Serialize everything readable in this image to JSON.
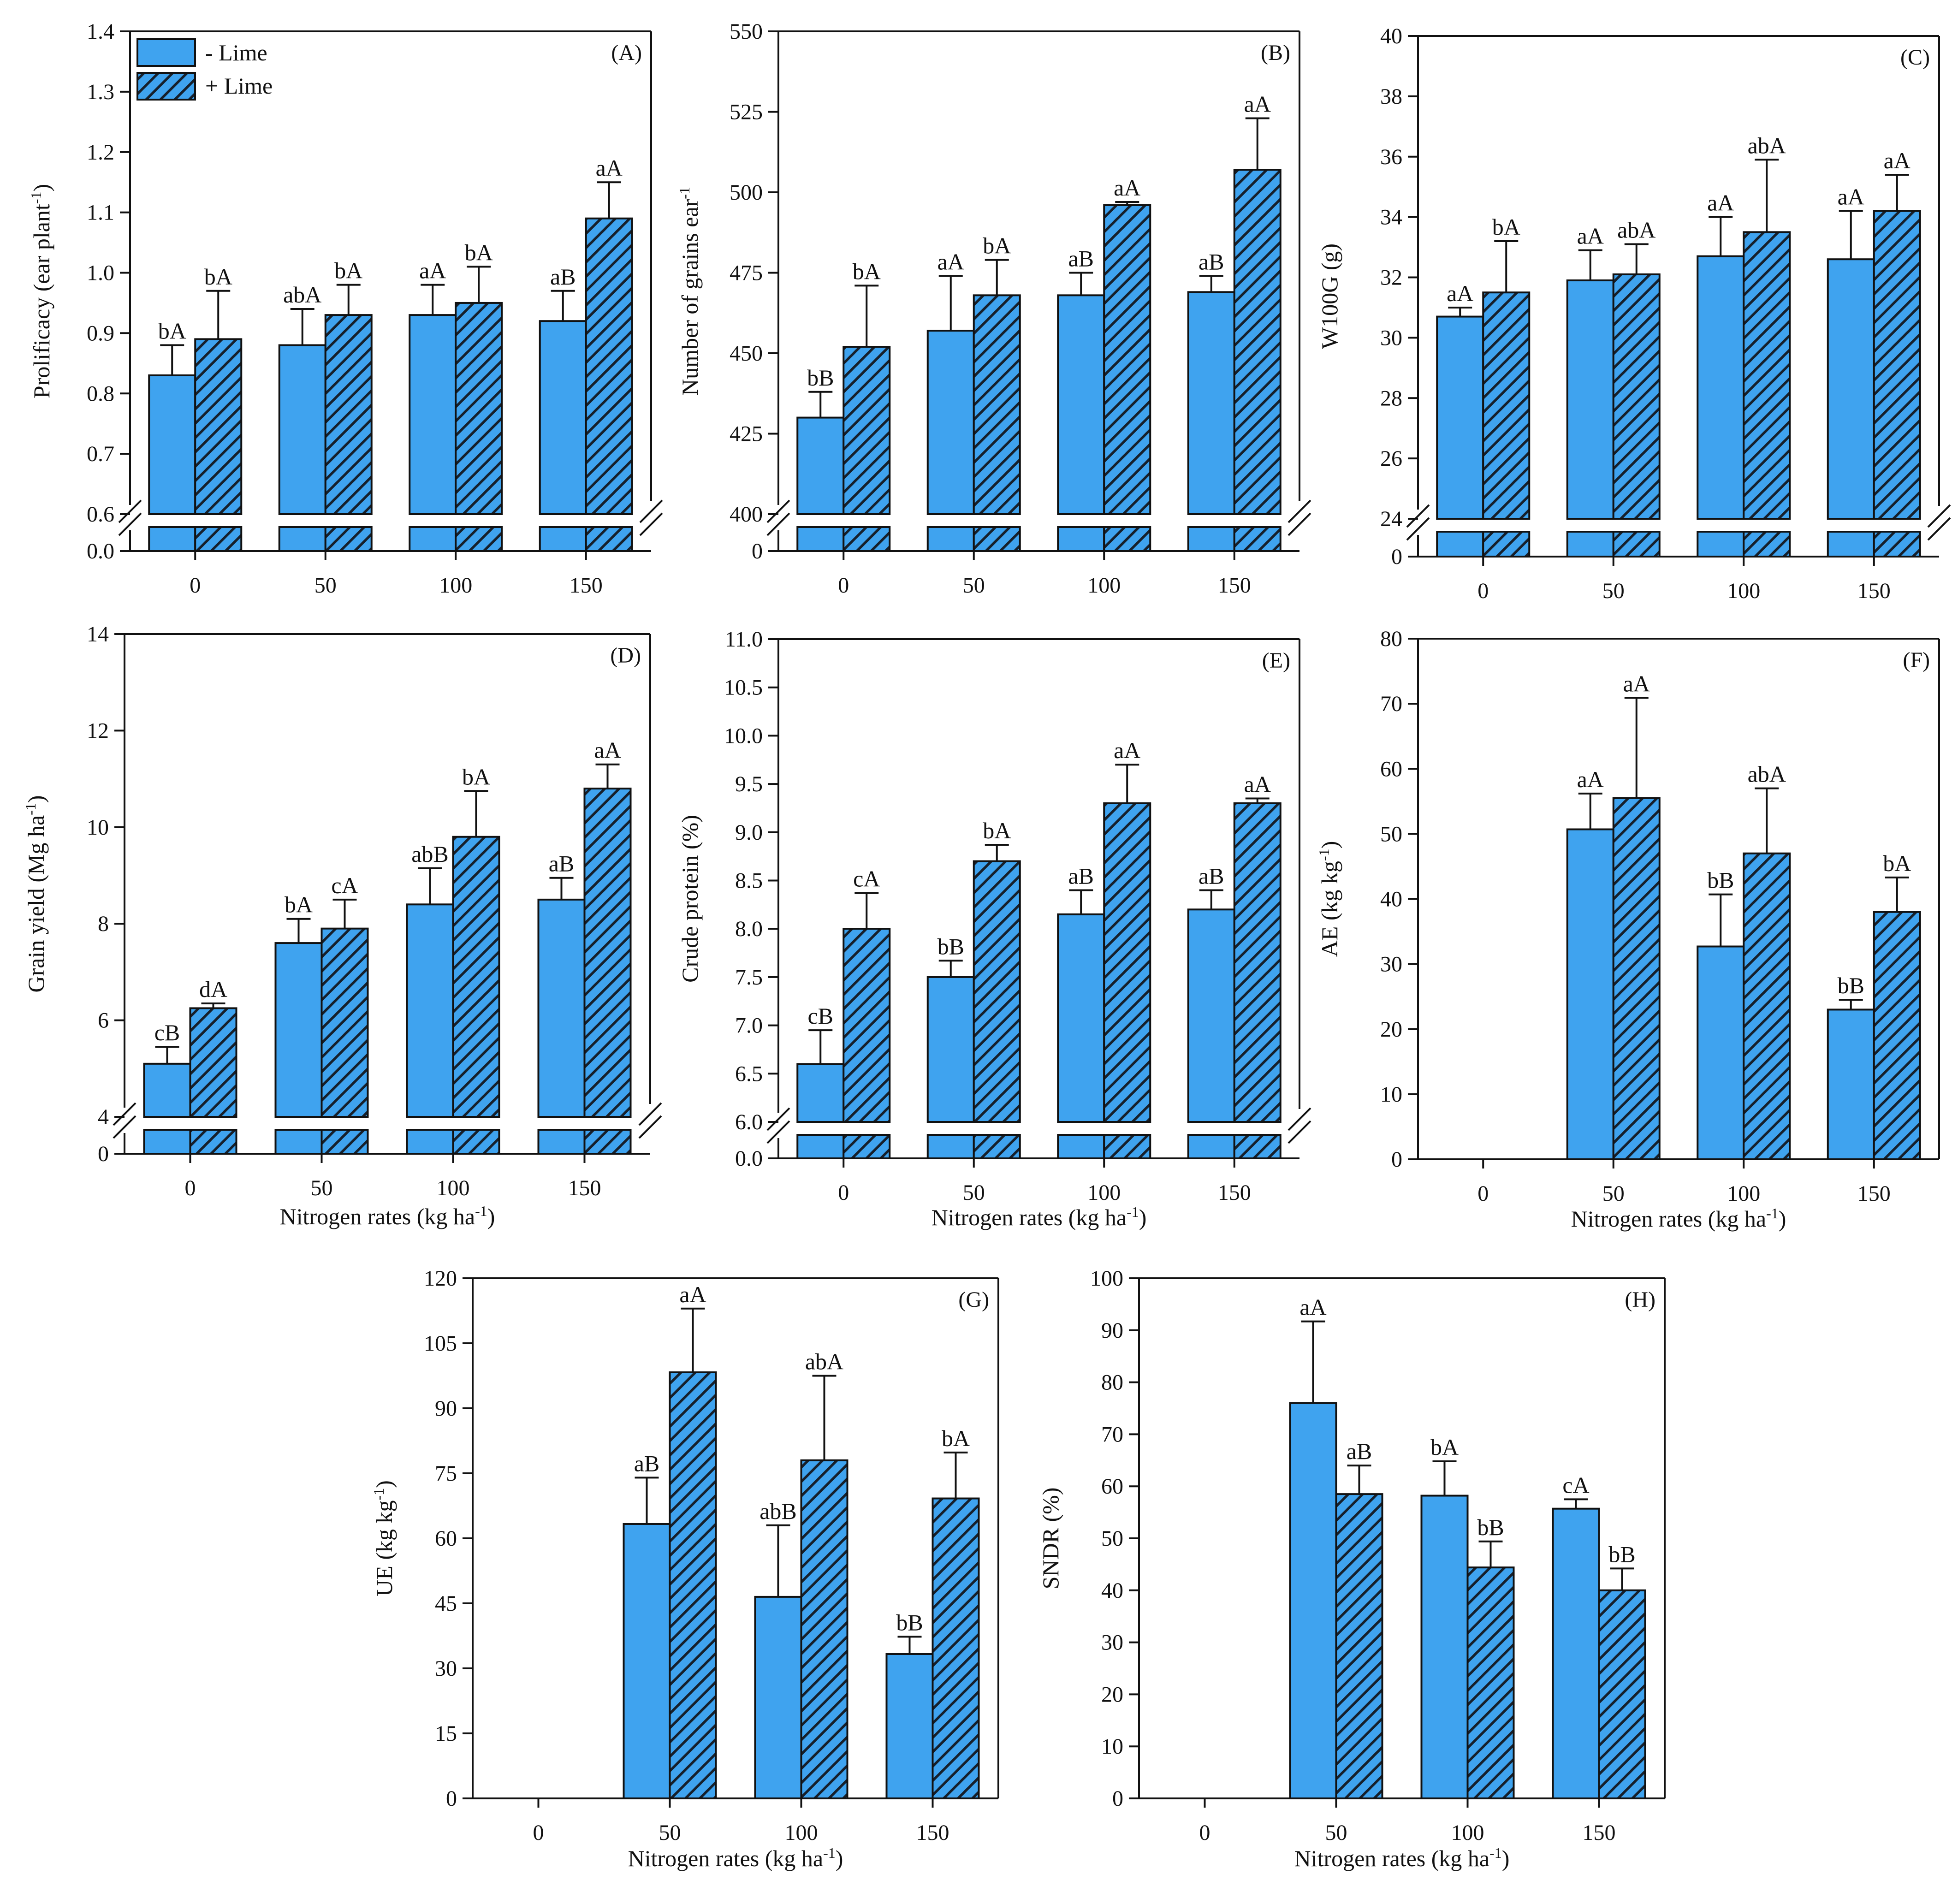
{
  "colors": {
    "minus_lime": "#3fa3ef",
    "plus_lime": "#3fa3ef",
    "hatch": "#16202c",
    "axis": "#111111"
  },
  "legend": {
    "minus": "- Lime",
    "plus": "+ Lime"
  },
  "chart_data": [
    {
      "id": "A",
      "type": "bar",
      "panel_label": "(A)",
      "title": "",
      "xlabel": "",
      "ylabel": "Prolificacy (ear plant",
      "ylabel_sup": "-1",
      "ylabel_tail": ")",
      "categories": [
        "0",
        "50",
        "100",
        "150"
      ],
      "ylim": [
        0.6,
        1.4
      ],
      "yticks": [
        "1.4",
        "1.3",
        "1.2",
        "1.1",
        "1.0",
        "0.9",
        "0.8",
        "0.7",
        "0.6"
      ],
      "break": true,
      "break_zero": "0.0",
      "series": [
        {
          "name": "- Lime",
          "values": [
            0.83,
            0.88,
            0.93,
            0.92
          ],
          "errors": [
            0.05,
            0.06,
            0.05,
            0.05
          ],
          "letters": [
            "bA",
            "abA",
            "aA",
            "aB"
          ]
        },
        {
          "name": "+ Lime",
          "values": [
            0.89,
            0.93,
            0.95,
            1.09
          ],
          "errors": [
            0.08,
            0.05,
            0.06,
            0.06
          ],
          "letters": [
            "bA",
            "bA",
            "bA",
            "aA"
          ]
        }
      ]
    },
    {
      "id": "B",
      "type": "bar",
      "panel_label": "(B)",
      "title": "",
      "xlabel": "",
      "ylabel": "Number of grains ear",
      "ylabel_sup": "-1",
      "ylabel_tail": "",
      "categories": [
        "0",
        "50",
        "100",
        "150"
      ],
      "ylim": [
        400,
        550
      ],
      "yticks": [
        "550",
        "525",
        "500",
        "475",
        "450",
        "425",
        "400"
      ],
      "break": true,
      "break_zero": "0",
      "series": [
        {
          "name": "- Lime",
          "values": [
            430,
            457,
            468,
            469
          ],
          "errors": [
            8,
            17,
            7,
            5
          ],
          "letters": [
            "bB",
            "aA",
            "aB",
            "aB"
          ]
        },
        {
          "name": "+ Lime",
          "values": [
            452,
            468,
            496,
            507
          ],
          "errors": [
            19,
            11,
            1,
            16
          ],
          "letters": [
            "bA",
            "bA",
            "aA",
            "aA"
          ]
        }
      ]
    },
    {
      "id": "C",
      "type": "bar",
      "panel_label": "(C)",
      "title": "",
      "xlabel": "",
      "ylabel": "W100G (g)",
      "ylabel_sup": "",
      "ylabel_tail": "",
      "categories": [
        "0",
        "50",
        "100",
        "150"
      ],
      "ylim": [
        24,
        40
      ],
      "yticks": [
        "40",
        "38",
        "36",
        "34",
        "32",
        "30",
        "28",
        "26",
        "24"
      ],
      "break": true,
      "break_zero": "0",
      "series": [
        {
          "name": "- Lime",
          "values": [
            30.7,
            31.9,
            32.7,
            32.6
          ],
          "errors": [
            0.3,
            1.0,
            1.3,
            1.6
          ],
          "letters": [
            "aA",
            "aA",
            "aA",
            "aA"
          ]
        },
        {
          "name": "+ Lime",
          "values": [
            31.5,
            32.1,
            33.5,
            34.2
          ],
          "errors": [
            1.7,
            1.0,
            2.4,
            1.2
          ],
          "letters": [
            "bA",
            "abA",
            "abA",
            "aA"
          ]
        }
      ]
    },
    {
      "id": "D",
      "type": "bar",
      "panel_label": "(D)",
      "title": "",
      "xlabel": "Nitrogen rates (kg ha",
      "xlabel_sup": "-1",
      "xlabel_tail": ")",
      "ylabel": "Grain yield (Mg ha",
      "ylabel_sup": "-1",
      "ylabel_tail": ")",
      "categories": [
        "0",
        "50",
        "100",
        "150"
      ],
      "ylim": [
        4,
        14
      ],
      "yticks": [
        "14",
        "12",
        "10",
        "8",
        "6",
        "4"
      ],
      "break": true,
      "break_zero": "0",
      "series": [
        {
          "name": "- Lime",
          "values": [
            5.1,
            7.6,
            8.4,
            8.5
          ],
          "errors": [
            0.35,
            0.5,
            0.75,
            0.45
          ],
          "letters": [
            "cB",
            "bA",
            "abB",
            "aB"
          ]
        },
        {
          "name": "+ Lime",
          "values": [
            6.25,
            7.9,
            9.8,
            10.8
          ],
          "errors": [
            0.1,
            0.6,
            0.95,
            0.5
          ],
          "letters": [
            "dA",
            "cA",
            "bA",
            "aA"
          ]
        }
      ]
    },
    {
      "id": "E",
      "type": "bar",
      "panel_label": "(E)",
      "title": "",
      "xlabel": "Nitrogen rates (kg ha",
      "xlabel_sup": "-1",
      "xlabel_tail": ")",
      "ylabel": "Crude protein (%)",
      "ylabel_sup": "",
      "ylabel_tail": "",
      "categories": [
        "0",
        "50",
        "100",
        "150"
      ],
      "ylim": [
        6,
        11
      ],
      "yticks": [
        "11.0",
        "10.5",
        "10.0",
        "9.5",
        "9.0",
        "8.5",
        "8.0",
        "7.5",
        "7.0",
        "6.5",
        "6.0"
      ],
      "break": true,
      "break_zero": "0.0",
      "series": [
        {
          "name": "- Lime",
          "values": [
            6.6,
            7.5,
            8.15,
            8.2
          ],
          "errors": [
            0.35,
            0.17,
            0.25,
            0.2
          ],
          "letters": [
            "cB",
            "bB",
            "aB",
            "aB"
          ]
        },
        {
          "name": "+ Lime",
          "values": [
            8.0,
            8.7,
            9.3,
            9.3
          ],
          "errors": [
            0.37,
            0.17,
            0.4,
            0.05
          ],
          "letters": [
            "cA",
            "bA",
            "aA",
            "aA"
          ]
        }
      ]
    },
    {
      "id": "F",
      "type": "bar",
      "panel_label": "(F)",
      "title": "",
      "xlabel": "Nitrogen rates (kg ha",
      "xlabel_sup": "-1",
      "xlabel_tail": ")",
      "ylabel": "AE (kg kg",
      "ylabel_sup": "-1",
      "ylabel_tail": ")",
      "categories": [
        "0",
        "50",
        "100",
        "150"
      ],
      "ylim": [
        0,
        80
      ],
      "yticks": [
        "80",
        "70",
        "60",
        "50",
        "40",
        "30",
        "20",
        "10",
        "0"
      ],
      "break": false,
      "series": [
        {
          "name": "- Lime",
          "values": [
            null,
            50.7,
            32.7,
            23.0
          ],
          "errors": [
            null,
            5.5,
            8,
            1.5
          ],
          "letters": [
            "",
            "aA",
            "bB",
            "bB"
          ]
        },
        {
          "name": "+ Lime",
          "values": [
            null,
            55.5,
            47.0,
            38.0
          ],
          "errors": [
            null,
            15.4,
            10,
            5.3
          ],
          "letters": [
            "",
            "aA",
            "abA",
            "bA"
          ]
        }
      ]
    },
    {
      "id": "G",
      "type": "bar",
      "panel_label": "(G)",
      "title": "",
      "xlabel": "Nitrogen rates (kg ha",
      "xlabel_sup": "-1",
      "xlabel_tail": ")",
      "ylabel": "UE (kg kg",
      "ylabel_sup": "-1",
      "ylabel_tail": ")",
      "categories": [
        "0",
        "50",
        "100",
        "150"
      ],
      "ylim": [
        0,
        120
      ],
      "yticks": [
        "120",
        "105",
        "90",
        "75",
        "60",
        "45",
        "30",
        "15",
        "0"
      ],
      "break": false,
      "series": [
        {
          "name": "- Lime",
          "values": [
            null,
            63.3,
            46.5,
            33.3
          ],
          "errors": [
            null,
            10.7,
            16.5,
            4
          ],
          "letters": [
            "",
            "aB",
            "abB",
            "bB"
          ]
        },
        {
          "name": "+ Lime",
          "values": [
            null,
            98.3,
            78.0,
            69.2
          ],
          "errors": [
            null,
            14.7,
            19.5,
            10.6
          ],
          "letters": [
            "",
            "aA",
            "abA",
            "bA"
          ]
        }
      ]
    },
    {
      "id": "H",
      "type": "bar",
      "panel_label": "(H)",
      "title": "",
      "xlabel": "Nitrogen rates (kg ha",
      "xlabel_sup": "-1",
      "xlabel_tail": ")",
      "ylabel": "SNDR (%)",
      "ylabel_sup": "",
      "ylabel_tail": "",
      "categories": [
        "0",
        "50",
        "100",
        "150"
      ],
      "ylim": [
        0,
        100
      ],
      "yticks": [
        "100",
        "90",
        "80",
        "70",
        "60",
        "50",
        "40",
        "30",
        "20",
        "10",
        "0"
      ],
      "break": false,
      "series": [
        {
          "name": "- Lime",
          "values": [
            null,
            76.0,
            58.2,
            55.7
          ],
          "errors": [
            null,
            15.7,
            6.6,
            1.8
          ],
          "letters": [
            "",
            "aA",
            "bA",
            "cA"
          ]
        },
        {
          "name": "+ Lime",
          "values": [
            null,
            58.5,
            44.4,
            40.0
          ],
          "errors": [
            null,
            5.5,
            5.0,
            4.2
          ],
          "letters": [
            "",
            "aB",
            "bB",
            "bB"
          ]
        }
      ]
    }
  ]
}
